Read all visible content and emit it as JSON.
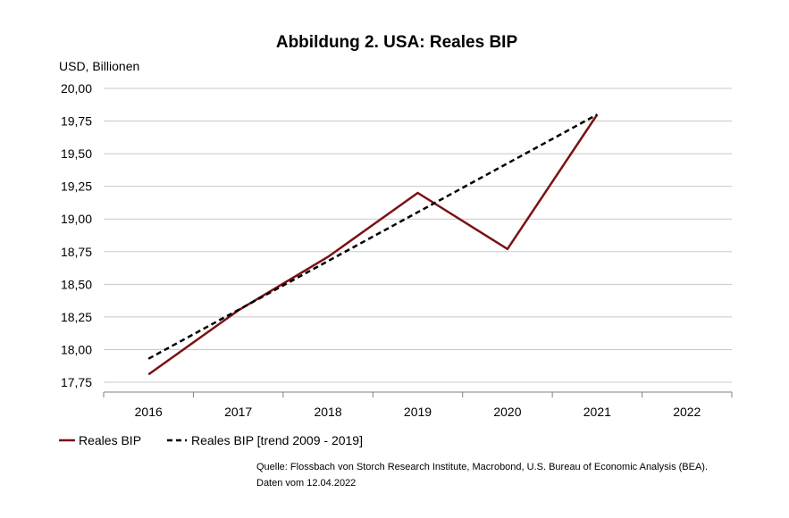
{
  "chart_data": {
    "type": "line",
    "title": "Abbildung 2. USA: Reales BIP",
    "ylabel": "USD, Billionen",
    "xlabel": "",
    "categories": [
      "2016",
      "2017",
      "2018",
      "2019",
      "2020",
      "2021",
      "2022"
    ],
    "ylim": [
      17.75,
      20.0
    ],
    "yticks": [
      "20,00",
      "19,75",
      "19,50",
      "19,25",
      "19,00",
      "18,75",
      "18,50",
      "18,25",
      "18,00",
      "17,75"
    ],
    "ytick_values": [
      20.0,
      19.75,
      19.5,
      19.25,
      19.0,
      18.75,
      18.5,
      18.25,
      18.0,
      17.75
    ],
    "grid": true,
    "legend_position": "bottom-left",
    "series": [
      {
        "name": "Reales BIP",
        "style": "solid",
        "color": "#7b1113",
        "x": [
          2016,
          2017,
          2018,
          2019,
          2020,
          2021
        ],
        "values": [
          17.81,
          18.3,
          18.71,
          19.2,
          18.77,
          19.8
        ]
      },
      {
        "name": "Reales BIP [trend 2009 - 2019]",
        "style": "dashed",
        "color": "#000000",
        "x": [
          2016,
          2021
        ],
        "values": [
          17.93,
          19.8
        ]
      }
    ],
    "source_lines": [
      "Quelle: Flossbach von Storch Research Institute, Macrobond, U.S. Bureau of Economic Analysis (BEA).",
      "Daten vom 12.04.2022"
    ]
  },
  "colors": {
    "grid": "#c8c8c8",
    "axis": "#808080"
  }
}
